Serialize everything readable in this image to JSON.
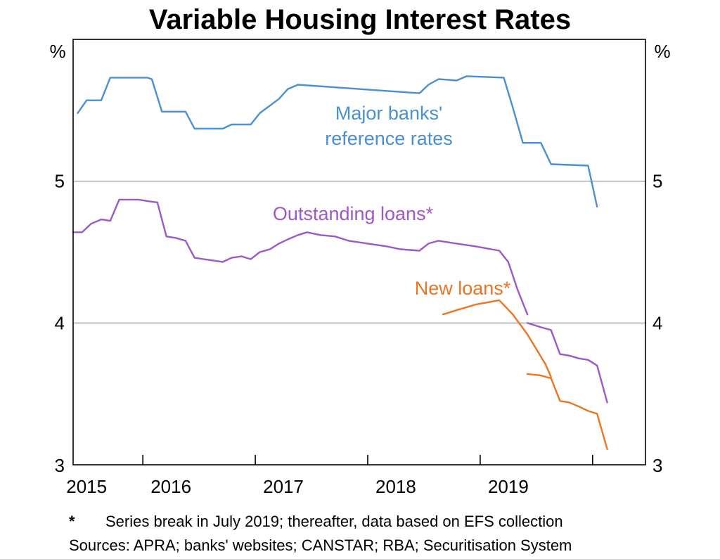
{
  "colors": {
    "major": "#4A90D2",
    "outstanding": "#9B59C9",
    "new": "#EE7422",
    "grid": "#8c8c8c",
    "axis": "#000000"
  },
  "notes": {
    "star": "*",
    "series_break": "Series break in July 2019; thereafter, data based on EFS collection",
    "sources": "Sources: APRA; banks' websites; CANSTAR; RBA; Securitisation System"
  },
  "chart_data": {
    "type": "line",
    "title": "Variable Housing Interest Rates",
    "ylabel_left": "%",
    "ylabel_right": "%",
    "ylim": [
      3,
      6
    ],
    "xlim": [
      2014.88,
      2019.97
    ],
    "yticks": [
      3,
      4,
      5
    ],
    "year_labels": [
      {
        "label": "2015",
        "at": 2015.0
      },
      {
        "label": "2016",
        "at": 2015.75
      },
      {
        "label": "2017",
        "at": 2016.75
      },
      {
        "label": "2018",
        "at": 2017.75
      },
      {
        "label": "2019",
        "at": 2018.75
      }
    ],
    "xticks": [
      2015.5,
      2016.5,
      2017.5,
      2018.5,
      2019.5
    ],
    "grid": true,
    "legend": "none",
    "series": [
      {
        "name": "Major banks' reference rates",
        "color": "#4A90D2",
        "label_lines": [
          "Major banks'",
          "reference rates"
        ],
        "points": [
          [
            2014.92,
            5.48
          ],
          [
            2015.0,
            5.57
          ],
          [
            2015.13,
            5.57
          ],
          [
            2015.21,
            5.73
          ],
          [
            2015.54,
            5.73
          ],
          [
            2015.58,
            5.72
          ],
          [
            2015.67,
            5.49
          ],
          [
            2015.88,
            5.49
          ],
          [
            2015.96,
            5.37
          ],
          [
            2016.21,
            5.37
          ],
          [
            2016.29,
            5.4
          ],
          [
            2016.46,
            5.4
          ],
          [
            2016.54,
            5.48
          ],
          [
            2016.71,
            5.58
          ],
          [
            2016.79,
            5.65
          ],
          [
            2016.88,
            5.68
          ],
          [
            2017.96,
            5.62
          ],
          [
            2018.04,
            5.68
          ],
          [
            2018.13,
            5.72
          ],
          [
            2018.29,
            5.71
          ],
          [
            2018.38,
            5.74
          ],
          [
            2018.71,
            5.73
          ],
          [
            2018.79,
            5.52
          ],
          [
            2018.88,
            5.27
          ],
          [
            2019.04,
            5.27
          ],
          [
            2019.13,
            5.12
          ],
          [
            2019.46,
            5.11
          ],
          [
            2019.54,
            4.82
          ]
        ]
      },
      {
        "name": "Outstanding loans*",
        "color": "#9B59C9",
        "label_lines": [
          "Outstanding loans*"
        ],
        "points": [
          [
            2014.88,
            4.64
          ],
          [
            2014.96,
            4.64
          ],
          [
            2015.04,
            4.7
          ],
          [
            2015.13,
            4.73
          ],
          [
            2015.21,
            4.72
          ],
          [
            2015.29,
            4.87
          ],
          [
            2015.38,
            4.87
          ],
          [
            2015.46,
            4.87
          ],
          [
            2015.54,
            4.86
          ],
          [
            2015.63,
            4.85
          ],
          [
            2015.71,
            4.61
          ],
          [
            2015.79,
            4.6
          ],
          [
            2015.88,
            4.58
          ],
          [
            2015.96,
            4.46
          ],
          [
            2016.04,
            4.45
          ],
          [
            2016.13,
            4.44
          ],
          [
            2016.21,
            4.43
          ],
          [
            2016.29,
            4.46
          ],
          [
            2016.38,
            4.47
          ],
          [
            2016.46,
            4.45
          ],
          [
            2016.54,
            4.5
          ],
          [
            2016.63,
            4.52
          ],
          [
            2016.71,
            4.56
          ],
          [
            2016.79,
            4.59
          ],
          [
            2016.88,
            4.62
          ],
          [
            2016.96,
            4.64
          ],
          [
            2017.08,
            4.62
          ],
          [
            2017.21,
            4.61
          ],
          [
            2017.33,
            4.58
          ],
          [
            2017.5,
            4.56
          ],
          [
            2017.67,
            4.54
          ],
          [
            2017.79,
            4.52
          ],
          [
            2017.96,
            4.51
          ],
          [
            2018.04,
            4.56
          ],
          [
            2018.13,
            4.58
          ],
          [
            2018.29,
            4.56
          ],
          [
            2018.46,
            4.54
          ],
          [
            2018.67,
            4.51
          ],
          [
            2018.75,
            4.43
          ],
          [
            2018.83,
            4.24
          ],
          [
            2018.92,
            4.06
          ]
        ]
      },
      {
        "name": "Outstanding loans* (post-break)",
        "color": "#9B59C9",
        "points": [
          [
            2018.92,
            4.0
          ],
          [
            2019.04,
            3.97
          ],
          [
            2019.13,
            3.95
          ],
          [
            2019.21,
            3.78
          ],
          [
            2019.29,
            3.77
          ],
          [
            2019.38,
            3.75
          ],
          [
            2019.46,
            3.74
          ],
          [
            2019.54,
            3.7
          ],
          [
            2019.63,
            3.44
          ]
        ]
      },
      {
        "name": "New loans*",
        "color": "#EE7422",
        "label_lines": [
          "New loans*"
        ],
        "points": [
          [
            2018.17,
            4.06
          ],
          [
            2018.29,
            4.09
          ],
          [
            2018.46,
            4.13
          ],
          [
            2018.67,
            4.16
          ],
          [
            2018.79,
            4.06
          ],
          [
            2018.92,
            3.92
          ],
          [
            2019.08,
            3.71
          ],
          [
            2019.13,
            3.62
          ]
        ]
      },
      {
        "name": "New loans* (post-break)",
        "color": "#EE7422",
        "points": [
          [
            2018.92,
            3.64
          ],
          [
            2019.04,
            3.63
          ],
          [
            2019.13,
            3.61
          ],
          [
            2019.21,
            3.45
          ],
          [
            2019.29,
            3.44
          ],
          [
            2019.38,
            3.41
          ],
          [
            2019.46,
            3.38
          ],
          [
            2019.54,
            3.36
          ],
          [
            2019.63,
            3.11
          ]
        ]
      }
    ]
  }
}
